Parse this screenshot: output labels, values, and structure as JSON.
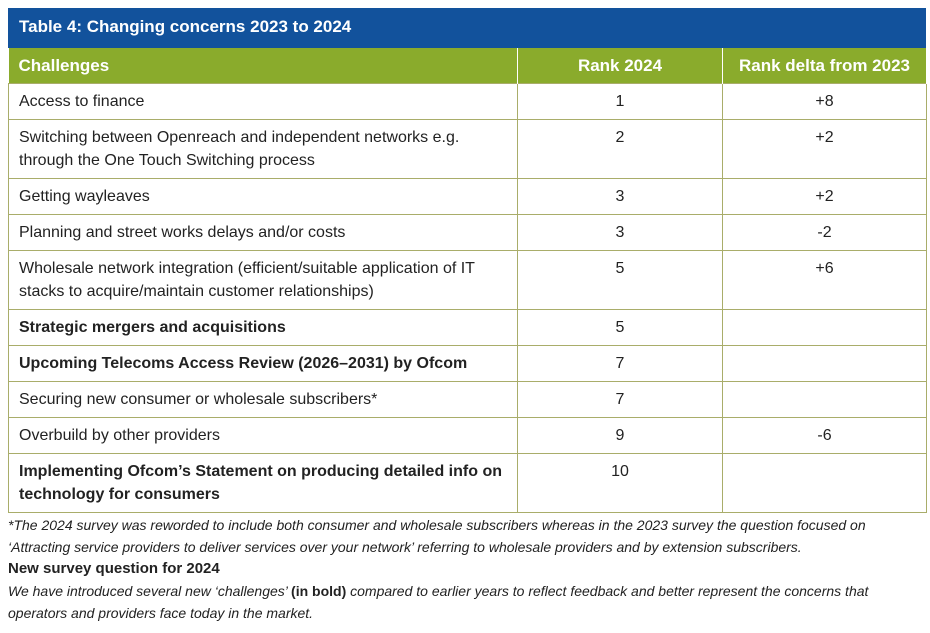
{
  "title": "Table 4: Changing concerns 2023 to 2024",
  "headers": [
    "Challenges",
    "Rank 2024",
    "Rank delta from 2023"
  ],
  "rows": [
    {
      "challenge": "Access to finance",
      "rank": "1",
      "delta": "+8",
      "bold": false
    },
    {
      "challenge": "Switching between Openreach and independent networks e.g. through the One Touch Switching process",
      "rank": "2",
      "delta": "+2",
      "bold": false
    },
    {
      "challenge": "Getting wayleaves",
      "rank": "3",
      "delta": "+2",
      "bold": false
    },
    {
      "challenge": "Planning and street works delays and/or costs",
      "rank": "3",
      "delta": "-2",
      "bold": false
    },
    {
      "challenge": "Wholesale network integration (efficient/suitable application of IT stacks to acquire/maintain customer relationships)",
      "rank": "5",
      "delta": "+6",
      "bold": false
    },
    {
      "challenge": "Strategic mergers and acquisitions",
      "rank": "5",
      "delta": "",
      "bold": true
    },
    {
      "challenge": "Upcoming Telecoms Access Review (2026–2031) by Ofcom",
      "rank": "7",
      "delta": "",
      "bold": true
    },
    {
      "challenge": "Securing new consumer or wholesale subscribers*",
      "rank": "7",
      "delta": "",
      "bold": false
    },
    {
      "challenge": "Overbuild by other providers",
      "rank": "9",
      "delta": "-6",
      "bold": false
    },
    {
      "challenge": "Implementing Ofcom’s Statement on producing detailed info on technology for consumers",
      "rank": "10",
      "delta": "",
      "bold": true
    }
  ],
  "footnote": "*The 2024 survey was reworded to include both consumer and wholesale subscribers whereas in the 2023 survey the question focused on ‘Attracting service providers to deliver services over your network’ referring to wholesale providers and by extension subscribers.",
  "new_heading": "New survey question for 2024",
  "new_text_before": "We have introduced several new ‘challenges’ ",
  "new_text_bold": "(in bold)",
  "new_text_after": " compared to earlier years to reflect feedback and better represent the concerns that operators and providers face today in the market."
}
